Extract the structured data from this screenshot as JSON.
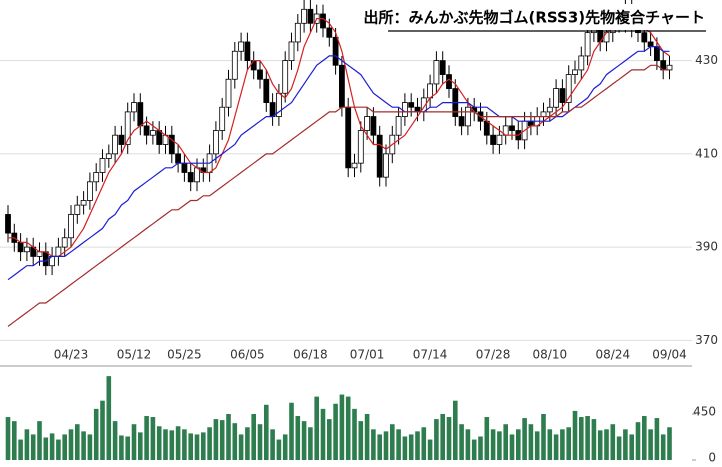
{
  "chart_data": {
    "type": "candlestick",
    "title": "出所：みんかぶ先物ゴム(RSS3)先物複合チャート",
    "categories": [
      null,
      null,
      null,
      null,
      null,
      null,
      null,
      null,
      null,
      null,
      "04/23",
      null,
      null,
      null,
      null,
      null,
      null,
      null,
      null,
      null,
      "05/12",
      null,
      null,
      null,
      null,
      null,
      null,
      null,
      "05/25",
      null,
      null,
      null,
      null,
      null,
      null,
      null,
      null,
      null,
      "06/05",
      null,
      null,
      null,
      null,
      null,
      null,
      null,
      null,
      null,
      "06/18",
      null,
      null,
      null,
      null,
      null,
      null,
      null,
      null,
      "07/01",
      null,
      null,
      null,
      null,
      null,
      null,
      null,
      null,
      null,
      "07/14",
      null,
      null,
      null,
      null,
      null,
      null,
      null,
      null,
      null,
      "07/28",
      null,
      null,
      null,
      null,
      null,
      null,
      null,
      null,
      "08/10",
      null,
      null,
      null,
      null,
      null,
      null,
      null,
      null,
      null,
      "08/24",
      null,
      null,
      null,
      null,
      null,
      null,
      null,
      null,
      "09/04"
    ],
    "open": [
      397,
      393,
      391,
      389,
      390,
      388,
      389,
      386,
      388,
      390,
      392,
      397,
      399,
      400,
      404,
      406,
      409,
      410,
      414,
      412,
      419,
      421,
      416,
      414,
      415,
      412,
      414,
      410,
      408,
      406,
      404,
      407,
      406,
      410,
      415,
      420,
      426,
      432,
      434,
      430,
      428,
      426,
      421,
      418,
      423,
      430,
      434,
      438,
      441,
      438,
      440,
      437,
      435,
      429,
      420,
      407,
      408,
      415,
      418,
      414,
      405,
      410,
      414,
      418,
      421,
      420,
      419,
      422,
      425,
      430,
      427,
      424,
      418,
      416,
      420,
      419,
      417,
      414,
      412,
      414,
      416,
      415,
      413,
      417,
      416,
      418,
      419,
      420,
      424,
      421,
      427,
      428,
      431,
      436,
      438,
      434,
      436,
      440,
      438,
      442,
      437,
      436,
      434,
      433,
      430,
      428
    ],
    "high": [
      399,
      395,
      393,
      392,
      392,
      391,
      391,
      390,
      392,
      394,
      399,
      401,
      402,
      406,
      408,
      411,
      412,
      416,
      416,
      421,
      423,
      423,
      418,
      417,
      417,
      416,
      416,
      412,
      410,
      408,
      409,
      409,
      412,
      417,
      422,
      428,
      434,
      436,
      436,
      432,
      430,
      428,
      423,
      425,
      432,
      436,
      440,
      443,
      443,
      442,
      442,
      439,
      437,
      431,
      422,
      410,
      417,
      420,
      420,
      416,
      412,
      416,
      420,
      423,
      423,
      422,
      424,
      427,
      432,
      432,
      429,
      426,
      420,
      422,
      422,
      421,
      419,
      416,
      416,
      418,
      418,
      417,
      419,
      419,
      420,
      421,
      422,
      426,
      426,
      429,
      430,
      433,
      438,
      440,
      440,
      438,
      442,
      442,
      443,
      443,
      439,
      438,
      436,
      435,
      432,
      431
    ],
    "low": [
      391,
      389,
      387,
      387,
      386,
      386,
      384,
      384,
      386,
      388,
      390,
      395,
      397,
      398,
      402,
      404,
      407,
      408,
      410,
      410,
      417,
      414,
      412,
      412,
      410,
      410,
      408,
      406,
      404,
      402,
      402,
      404,
      404,
      408,
      413,
      418,
      424,
      430,
      428,
      426,
      424,
      419,
      416,
      416,
      421,
      428,
      432,
      436,
      436,
      436,
      435,
      433,
      427,
      418,
      405,
      405,
      406,
      413,
      412,
      403,
      403,
      408,
      412,
      416,
      418,
      417,
      417,
      420,
      423,
      425,
      422,
      416,
      414,
      414,
      417,
      415,
      412,
      410,
      410,
      412,
      413,
      411,
      411,
      414,
      414,
      416,
      417,
      418,
      419,
      419,
      425,
      426,
      429,
      434,
      432,
      432,
      434,
      436,
      436,
      435,
      434,
      432,
      431,
      428,
      426,
      426
    ],
    "close": [
      393,
      391,
      389,
      390,
      388,
      389,
      386,
      388,
      390,
      392,
      397,
      399,
      400,
      404,
      406,
      409,
      410,
      414,
      412,
      419,
      421,
      416,
      414,
      415,
      412,
      414,
      410,
      408,
      406,
      404,
      407,
      406,
      410,
      415,
      420,
      426,
      432,
      434,
      430,
      428,
      426,
      421,
      418,
      423,
      430,
      434,
      438,
      441,
      438,
      440,
      437,
      435,
      429,
      420,
      407,
      408,
      415,
      418,
      414,
      405,
      410,
      414,
      418,
      421,
      420,
      419,
      422,
      425,
      430,
      427,
      424,
      418,
      416,
      420,
      419,
      417,
      414,
      412,
      414,
      416,
      415,
      413,
      417,
      416,
      418,
      419,
      420,
      424,
      421,
      427,
      428,
      431,
      436,
      438,
      434,
      436,
      440,
      438,
      442,
      437,
      436,
      434,
      433,
      430,
      428,
      429
    ],
    "lines": [
      {
        "color": "#d62020",
        "values": [
          392,
          392,
          391,
          391,
          390,
          389,
          389,
          388,
          388,
          389,
          390,
          392,
          394,
          397,
          400,
          403,
          406,
          408,
          410,
          413,
          415,
          416,
          417,
          416,
          415,
          414,
          413,
          412,
          410,
          408,
          407,
          406,
          406,
          407,
          410,
          413,
          418,
          423,
          428,
          430,
          430,
          428,
          425,
          423,
          422,
          424,
          428,
          433,
          436,
          439,
          439,
          438,
          436,
          432,
          426,
          420,
          416,
          414,
          412,
          412,
          411,
          412,
          413,
          414,
          416,
          418,
          420,
          422,
          423,
          425,
          426,
          425,
          423,
          421,
          419,
          418,
          417,
          416,
          415,
          414,
          414,
          414,
          415,
          416,
          416,
          417,
          418,
          419,
          420,
          422,
          424,
          426,
          428,
          432,
          434,
          436,
          437,
          437,
          439,
          439,
          438,
          437,
          436,
          434,
          432,
          431
        ]
      },
      {
        "color": "#1c1cd6",
        "values": [
          383,
          384,
          385,
          386,
          386,
          387,
          387,
          388,
          388,
          388,
          389,
          390,
          391,
          392,
          393,
          394,
          396,
          397,
          399,
          400,
          402,
          403,
          404,
          405,
          406,
          407,
          407,
          408,
          408,
          408,
          408,
          408,
          408,
          409,
          410,
          411,
          412,
          414,
          415,
          416,
          417,
          418,
          418,
          419,
          420,
          421,
          423,
          425,
          427,
          429,
          430,
          431,
          431,
          430,
          429,
          428,
          427,
          425,
          423,
          422,
          421,
          420,
          420,
          419,
          419,
          419,
          419,
          420,
          420,
          421,
          421,
          421,
          421,
          421,
          420,
          420,
          420,
          419,
          418,
          418,
          418,
          417,
          417,
          417,
          417,
          417,
          417,
          418,
          418,
          419,
          420,
          421,
          422,
          424,
          425,
          427,
          428,
          429,
          430,
          431,
          432,
          432,
          433,
          433,
          432,
          432
        ]
      },
      {
        "color": "#a52a2a",
        "values": [
          373,
          374,
          375,
          376,
          377,
          378,
          378,
          379,
          380,
          381,
          382,
          383,
          384,
          385,
          386,
          387,
          388,
          389,
          390,
          391,
          392,
          393,
          394,
          395,
          396,
          397,
          398,
          398,
          399,
          400,
          400,
          401,
          401,
          402,
          403,
          404,
          405,
          406,
          407,
          408,
          409,
          410,
          410,
          411,
          412,
          413,
          414,
          415,
          416,
          417,
          418,
          419,
          419,
          420,
          420,
          420,
          420,
          420,
          419,
          419,
          419,
          419,
          419,
          419,
          419,
          419,
          419,
          419,
          419,
          419,
          419,
          419,
          419,
          419,
          419,
          418,
          418,
          418,
          418,
          418,
          418,
          418,
          418,
          418,
          418,
          418,
          418,
          418,
          419,
          419,
          420,
          420,
          421,
          422,
          423,
          424,
          425,
          426,
          427,
          428,
          428,
          428,
          429,
          429,
          428,
          428
        ]
      }
    ],
    "ylim": [
      369,
      443
    ],
    "yticks": [
      370,
      390,
      410,
      430
    ],
    "grid": true,
    "volume": {
      "color": "#2e7d4f",
      "ylim": [
        0,
        880
      ],
      "yticks": [
        0,
        450
      ],
      "values": [
        420,
        380,
        200,
        300,
        250,
        380,
        220,
        260,
        200,
        250,
        300,
        350,
        280,
        250,
        500,
        580,
        820,
        380,
        240,
        230,
        350,
        270,
        430,
        420,
        330,
        300,
        290,
        330,
        300,
        260,
        250,
        270,
        320,
        400,
        390,
        450,
        360,
        250,
        320,
        450,
        350,
        540,
        300,
        200,
        250,
        560,
        430,
        380,
        320,
        620,
        500,
        400,
        550,
        640,
        620,
        500,
        380,
        450,
        300,
        250,
        280,
        350,
        300,
        230,
        250,
        280,
        320,
        200,
        400,
        450,
        420,
        580,
        350,
        300,
        200,
        230,
        420,
        300,
        280,
        350,
        250,
        300,
        410,
        350,
        280,
        450,
        300,
        250,
        300,
        320,
        480,
        420,
        430,
        400,
        290,
        300,
        350,
        230,
        300,
        250,
        370,
        430,
        300,
        410,
        250,
        320
      ]
    }
  }
}
